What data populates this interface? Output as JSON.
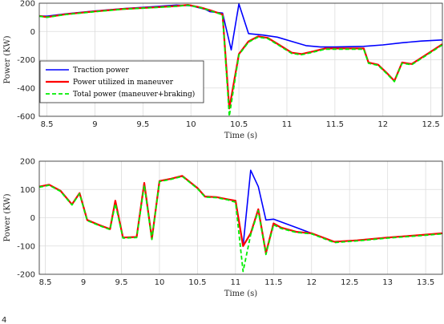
{
  "figure_marker": "4",
  "chart_data": [
    {
      "type": "line",
      "xlabel": "Time (s)",
      "ylabel": "Power (KW)",
      "xlim": [
        8.42,
        12.62
      ],
      "ylim": [
        -600,
        200
      ],
      "xticks": [
        "8.5",
        "9",
        "9.5",
        "10",
        "10.5",
        "11",
        "11.5",
        "12",
        "12.5"
      ],
      "yticks": [
        "200",
        "0",
        "-200",
        "-400",
        "-600"
      ],
      "grid": true,
      "legend_position": "bottom-left",
      "colors": {
        "traction": "#0000ff",
        "maneuver": "#ff0000",
        "total": "#00ee00"
      },
      "series": [
        {
          "name": "Traction power",
          "x": [
            8.42,
            8.5,
            8.7,
            9.0,
            9.3,
            9.6,
            9.85,
            10.0,
            10.15,
            10.2,
            10.33,
            10.42,
            10.5,
            10.6,
            10.75,
            10.9,
            11.05,
            11.2,
            11.35,
            11.5,
            11.8,
            12.0,
            12.2,
            12.4,
            12.62
          ],
          "y": [
            110,
            108,
            125,
            145,
            162,
            175,
            187,
            182,
            157,
            140,
            130,
            -130,
            195,
            -15,
            -25,
            -40,
            -70,
            -100,
            -110,
            -110,
            -105,
            -95,
            -80,
            -68,
            -60
          ]
        },
        {
          "name": "Power utilized in maneuver",
          "x": [
            8.42,
            8.5,
            8.7,
            9.0,
            9.3,
            9.6,
            9.85,
            9.97,
            10.1,
            10.2,
            10.33,
            10.4,
            10.5,
            10.6,
            10.7,
            10.8,
            10.92,
            11.05,
            11.15,
            11.25,
            11.4,
            11.55,
            11.8,
            11.85,
            11.95,
            12.05,
            12.12,
            12.2,
            12.3,
            12.45,
            12.62
          ],
          "y": [
            110,
            102,
            122,
            142,
            160,
            170,
            180,
            188,
            170,
            150,
            120,
            -545,
            -160,
            -70,
            -35,
            -45,
            -95,
            -150,
            -160,
            -145,
            -120,
            -120,
            -120,
            -220,
            -235,
            -300,
            -350,
            -220,
            -230,
            -165,
            -90
          ]
        },
        {
          "name": "Total power (maneuver+braking)",
          "x": [
            8.42,
            8.5,
            8.7,
            9.0,
            9.3,
            9.6,
            9.85,
            9.97,
            10.1,
            10.2,
            10.33,
            10.4,
            10.5,
            10.6,
            10.7,
            10.8,
            10.92,
            11.05,
            11.15,
            11.25,
            11.4,
            11.55,
            11.8,
            11.85,
            11.95,
            12.05,
            12.12,
            12.2,
            12.3,
            12.45,
            12.62
          ],
          "y": [
            108,
            100,
            120,
            140,
            158,
            168,
            178,
            186,
            168,
            148,
            118,
            -600,
            -165,
            -75,
            -40,
            -50,
            -100,
            -155,
            -165,
            -150,
            -125,
            -125,
            -125,
            -225,
            -240,
            -305,
            -355,
            -225,
            -235,
            -170,
            -95
          ]
        }
      ]
    },
    {
      "type": "line",
      "xlabel": "Time (s)",
      "ylabel": "Power (KW)",
      "xlim": [
        8.42,
        13.72
      ],
      "ylim": [
        -200,
        200
      ],
      "xticks": [
        "8.5",
        "9",
        "9.5",
        "10",
        "10.5",
        "11",
        "11.5",
        "12",
        "12.5",
        "13",
        "13.5"
      ],
      "yticks": [
        "200",
        "100",
        "0",
        "-100",
        "-200"
      ],
      "grid": true,
      "colors": {
        "traction": "#0000ff",
        "maneuver": "#ff0000",
        "total": "#00ee00"
      },
      "series": [
        {
          "name": "Traction power",
          "x": [
            8.42,
            8.55,
            8.7,
            8.85,
            8.95,
            9.05,
            9.2,
            9.35,
            9.42,
            9.52,
            9.7,
            9.8,
            9.9,
            10.0,
            10.15,
            10.3,
            10.5,
            10.6,
            10.75,
            10.9,
            11.0,
            11.1,
            11.2,
            11.3,
            11.4,
            11.5,
            11.6,
            11.8,
            12.0,
            12.3,
            12.6,
            13.0,
            13.4,
            13.72
          ],
          "y": [
            110,
            117,
            95,
            47,
            87,
            -8,
            -25,
            -40,
            60,
            -70,
            -68,
            123,
            -75,
            130,
            138,
            148,
            105,
            75,
            73,
            65,
            60,
            -100,
            168,
            110,
            -8,
            -5,
            -15,
            -35,
            -55,
            -85,
            -80,
            -70,
            -62,
            -55
          ]
        },
        {
          "name": "Power utilized in maneuver",
          "x": [
            8.42,
            8.55,
            8.7,
            8.85,
            8.95,
            9.05,
            9.2,
            9.35,
            9.42,
            9.52,
            9.7,
            9.8,
            9.9,
            10.0,
            10.15,
            10.3,
            10.5,
            10.6,
            10.75,
            10.9,
            11.0,
            11.1,
            11.2,
            11.3,
            11.4,
            11.5,
            11.6,
            11.8,
            12.0,
            12.3,
            12.6,
            13.0,
            13.4,
            13.72
          ],
          "y": [
            110,
            117,
            95,
            47,
            87,
            -8,
            -25,
            -40,
            60,
            -70,
            -68,
            123,
            -75,
            130,
            138,
            148,
            105,
            75,
            73,
            65,
            60,
            -100,
            -55,
            30,
            -125,
            -20,
            -35,
            -50,
            -55,
            -85,
            -80,
            -70,
            -62,
            -55
          ]
        },
        {
          "name": "Total power (maneuver+braking)",
          "x": [
            8.42,
            8.55,
            8.7,
            8.85,
            8.95,
            9.05,
            9.2,
            9.35,
            9.42,
            9.52,
            9.7,
            9.8,
            9.9,
            10.0,
            10.15,
            10.3,
            10.5,
            10.6,
            10.75,
            10.9,
            11.0,
            11.1,
            11.2,
            11.3,
            11.4,
            11.5,
            11.6,
            11.8,
            12.0,
            12.3,
            12.6,
            13.0,
            13.4,
            13.72
          ],
          "y": [
            108,
            115,
            93,
            45,
            85,
            -10,
            -27,
            -42,
            50,
            -72,
            -70,
            115,
            -77,
            128,
            136,
            146,
            103,
            73,
            71,
            63,
            55,
            -190,
            -60,
            25,
            -130,
            -25,
            -38,
            -52,
            -57,
            -88,
            -82,
            -72,
            -64,
            -57
          ]
        }
      ]
    }
  ]
}
